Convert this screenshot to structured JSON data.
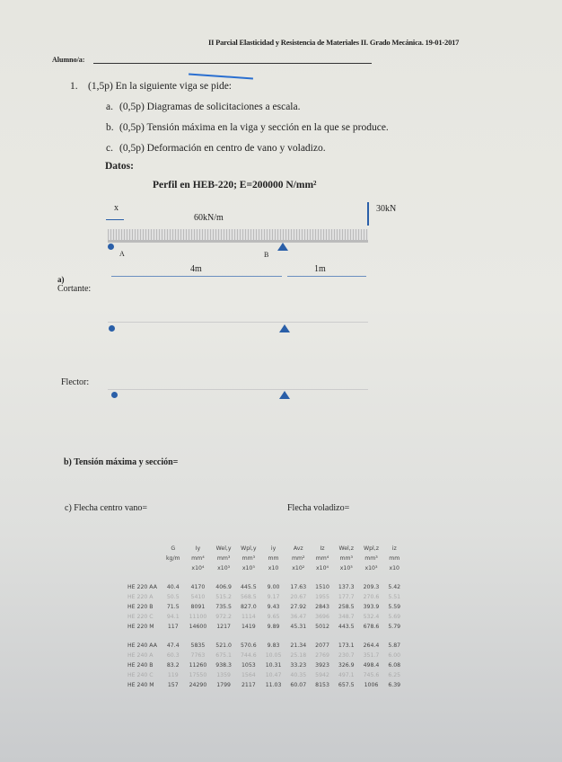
{
  "header": "II Parcial Elasticidad y Resistencia de Materiales II. Grado Mecánica. 19-01-2017",
  "student_label": "Alumno/a:",
  "question": {
    "number": "1.",
    "text": "(1,5p) En la siguiente viga se pide:",
    "items": [
      {
        "letter": "a.",
        "text": "(0,5p) Diagramas de solicitaciones a escala."
      },
      {
        "letter": "b.",
        "text": "(0,5p) Tensión máxima en la viga y sección en la que se produce."
      },
      {
        "letter": "c.",
        "text": "(0,5p) Deformación en centro de vano y voladizo."
      }
    ]
  },
  "datos_label": "Datos:",
  "profile": "Perfil en HEB-220; E=200000 N/mm²",
  "diagram": {
    "x_label": "x",
    "distributed_load": "60kN/m",
    "point_load": "30kN",
    "support_a": "A",
    "support_b": "B",
    "span1": "4m",
    "span2": "1m",
    "accent": "#2a5fa8"
  },
  "answers": {
    "a_label": "a)",
    "cortante": "Cortante:",
    "flector": "Flector:",
    "tension": "b) Tensión máxima y sección=",
    "flecha_centro": "c) Flecha centro vano=",
    "flecha_voladizo": "Flecha voladizo="
  },
  "table": {
    "headers": [
      "",
      "G",
      "Iy",
      "Wel,y",
      "Wpl,y",
      "iy",
      "Avz",
      "Iz",
      "Wel,z",
      "Wpl,z",
      "iz"
    ],
    "units": [
      "",
      "kg/m",
      "mm⁴",
      "mm³",
      "mm³",
      "mm",
      "mm²",
      "mm⁴",
      "mm³",
      "mm³",
      "mm"
    ],
    "scales": [
      "",
      "",
      "x10⁴",
      "x10³",
      "x10³",
      "x10",
      "x10²",
      "x10⁴",
      "x10³",
      "x10³",
      "x10"
    ],
    "groups": [
      [
        [
          "HE 220 AA",
          "40.4",
          "4170",
          "406.9",
          "445.5",
          "9.00",
          "17.63",
          "1510",
          "137.3",
          "209.3",
          "5.42"
        ],
        [
          "HE 220 A",
          "50.5",
          "5410",
          "515.2",
          "568.5",
          "9.17",
          "20.67",
          "1955",
          "177.7",
          "270.6",
          "5.51"
        ],
        [
          "HE 220 B",
          "71.5",
          "8091",
          "735.5",
          "827.0",
          "9.43",
          "27.92",
          "2843",
          "258.5",
          "393.9",
          "5.59"
        ],
        [
          "HE 220 C",
          "94.1",
          "11100",
          "972.2",
          "1114",
          "9.65",
          "36.47",
          "3696",
          "348.7",
          "532.4",
          "5.69"
        ],
        [
          "HE 220 M",
          "117",
          "14600",
          "1217",
          "1419",
          "9.89",
          "45.31",
          "5012",
          "443.5",
          "678.6",
          "5.79"
        ]
      ],
      [
        [
          "HE 240 AA",
          "47.4",
          "5835",
          "521.0",
          "570.6",
          "9.83",
          "21.34",
          "2077",
          "173.1",
          "264.4",
          "5.87"
        ],
        [
          "HE 240 A",
          "60.3",
          "7763",
          "675.1",
          "744.6",
          "10.05",
          "25.18",
          "2769",
          "230.7",
          "351.7",
          "6.00"
        ],
        [
          "HE 240 B",
          "83.2",
          "11260",
          "938.3",
          "1053",
          "10.31",
          "33.23",
          "3923",
          "326.9",
          "498.4",
          "6.08"
        ],
        [
          "HE 240 C",
          "119",
          "17550",
          "1359",
          "1564",
          "10.47",
          "40.35",
          "5942",
          "497.1",
          "745.6",
          "6.25"
        ],
        [
          "HE 240 M",
          "157",
          "24290",
          "1799",
          "2117",
          "11.03",
          "60.07",
          "8153",
          "657.5",
          "1006",
          "6.39"
        ]
      ]
    ]
  }
}
